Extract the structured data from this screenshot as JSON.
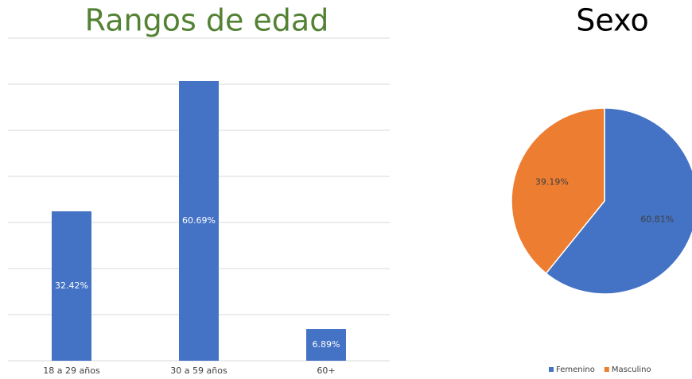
{
  "chart_data": [
    {
      "type": "bar",
      "title": "Rangos de edad",
      "categories": [
        "18 a 29 años",
        "30 a 59 años",
        "60+"
      ],
      "values": [
        32.42,
        60.69,
        6.89
      ],
      "value_labels": [
        "32.42%",
        "60.69%",
        "6.89%"
      ],
      "color": "#4472c4",
      "title_color": "#548235",
      "ylim": [
        0,
        70
      ],
      "yticks": [
        0,
        10,
        20,
        30,
        40,
        50,
        60,
        70
      ],
      "grid": true
    },
    {
      "type": "pie",
      "title": "Sexo",
      "categories": [
        "Femenino",
        "Masculino"
      ],
      "values": [
        60.81,
        39.19
      ],
      "value_labels": [
        "60.81%",
        "39.19%"
      ],
      "colors": [
        "#4472c4",
        "#ed7d31"
      ],
      "legend": "bottom"
    }
  ]
}
